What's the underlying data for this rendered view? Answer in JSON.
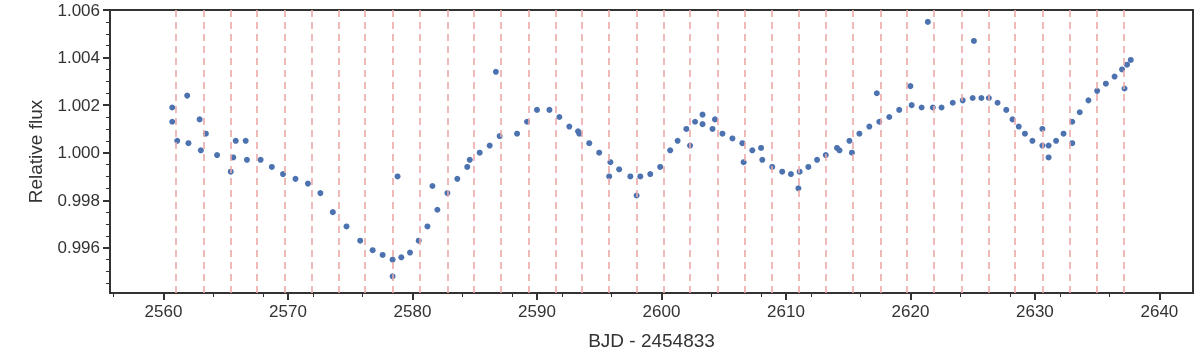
{
  "chart_data": {
    "type": "scatter",
    "xlabel": "BJD - 2454833",
    "ylabel": "Relative flux",
    "xlim": [
      2555.7,
      2642.7
    ],
    "ylim": [
      0.9941,
      1.006
    ],
    "xticks": [
      2560,
      2570,
      2580,
      2590,
      2600,
      2610,
      2620,
      2630,
      2640
    ],
    "yticks": [
      {
        "value": 0.996,
        "label": "0.996"
      },
      {
        "value": 0.998,
        "label": "0.998"
      },
      {
        "value": 1.0,
        "label": "1.000"
      },
      {
        "value": 1.002,
        "label": "1.002"
      },
      {
        "value": 1.004,
        "label": "1.004"
      },
      {
        "value": 1.006,
        "label": "1.006"
      }
    ],
    "grid": false,
    "marker": "circle",
    "series": [
      {
        "color": "#4c72b0",
        "x": [
          2560.7,
          2560.7,
          2561.1,
          2562.0,
          2563.0,
          2564.3,
          2565.6,
          2566.7,
          2567.8,
          2568.7,
          2569.6,
          2570.6,
          2571.6,
          2572.6,
          2573.6,
          2574.7,
          2575.8,
          2576.8,
          2577.6,
          2578.4,
          2579.1,
          2579.8,
          2580.5,
          2581.2,
          2582.0,
          2582.8,
          2583.6,
          2584.4,
          2584.6,
          2585.4,
          2586.2,
          2587.0,
          2588.4,
          2589.2,
          2590.0,
          2591.0,
          2591.8,
          2592.6,
          2593.4,
          2594.2,
          2595.0,
          2595.9,
          2596.6,
          2597.5,
          2598.3,
          2599.1,
          2599.9,
          2600.7,
          2601.3,
          2602.0,
          2602.7,
          2603.3,
          2604.1,
          2604.9,
          2605.7,
          2606.5,
          2607.3,
          2608.1,
          2608.9,
          2609.7,
          2610.4,
          2611.1,
          2611.8,
          2612.5,
          2613.2,
          2614.1,
          2614.3,
          2615.1,
          2615.9,
          2616.7,
          2617.5,
          2618.3,
          2619.1,
          2620.1,
          2620.9,
          2621.8,
          2622.5,
          2623.4,
          2624.2,
          2625.0,
          2625.7,
          2626.3,
          2627.0,
          2627.7,
          2628.2,
          2628.7,
          2629.2,
          2629.8,
          2630.6,
          2631.1,
          2631.7,
          2632.3,
          2633.0,
          2633.6,
          2634.3,
          2635.0,
          2635.7,
          2636.4,
          2637.0,
          2637.4,
          2637.7,
          2561.9,
          2562.9,
          2563.4,
          2565.8,
          2566.6,
          2565.4,
          2578.8,
          2581.6,
          2578.4,
          2586.7,
          2593.3,
          2598.0,
          2595.8,
          2603.3,
          2604.3,
          2602.3,
          2611.0,
          2606.6,
          2608.0,
          2625.1,
          2621.4,
          2617.3,
          2620.0,
          2630.6,
          2633.0,
          2637.2,
          2631.1,
          2615.3
        ],
        "values": [
          1.0019,
          1.0013,
          1.0005,
          1.0004,
          1.0001,
          0.9999,
          0.9998,
          0.9997,
          0.9997,
          0.9994,
          0.9991,
          0.9989,
          0.9987,
          0.9983,
          0.9975,
          0.9969,
          0.9963,
          0.9959,
          0.9957,
          0.9955,
          0.9956,
          0.9958,
          0.9963,
          0.9969,
          0.9976,
          0.9983,
          0.9989,
          0.9994,
          0.9997,
          1.0,
          1.0003,
          1.0007,
          1.0008,
          1.0013,
          1.0018,
          1.0018,
          1.0015,
          1.0011,
          1.0008,
          1.0004,
          1.0,
          0.9996,
          0.9993,
          0.999,
          0.999,
          0.9991,
          0.9994,
          1.0001,
          1.0005,
          1.001,
          1.0013,
          1.0012,
          1.001,
          1.0008,
          1.0006,
          1.0004,
          1.0001,
          0.9997,
          0.9994,
          0.9992,
          0.9991,
          0.9992,
          0.9994,
          0.9997,
          0.9999,
          1.0002,
          1.0001,
          1.0005,
          1.0008,
          1.0011,
          1.0013,
          1.0015,
          1.0018,
          1.002,
          1.0019,
          1.0019,
          1.0019,
          1.0021,
          1.0022,
          1.0023,
          1.0023,
          1.0023,
          1.0021,
          1.0018,
          1.0014,
          1.0011,
          1.0008,
          1.0005,
          1.0003,
          1.0003,
          1.0005,
          1.0008,
          1.0013,
          1.0017,
          1.0022,
          1.0026,
          1.0029,
          1.0032,
          1.0035,
          1.0037,
          1.0039,
          1.0024,
          1.0014,
          1.0008,
          1.0005,
          1.0005,
          0.9992,
          0.999,
          0.9986,
          0.9948,
          1.0034,
          1.0009,
          0.9982,
          0.999,
          1.0016,
          1.0014,
          1.0003,
          0.9985,
          0.9996,
          1.0002,
          1.0047,
          1.0055,
          1.0025,
          1.0028,
          1.001,
          1.0004,
          1.0027,
          0.9998,
          1.0
        ]
      }
    ],
    "ref_lines": [
      {
        "axis": "x",
        "value": 2561.0,
        "color": "#eaa9a9",
        "line_style": "dashed"
      },
      {
        "axis": "x",
        "value": 2563.2,
        "color": "#eaa9a9",
        "line_style": "dashed"
      },
      {
        "axis": "x",
        "value": 2565.4,
        "color": "#eaa9a9",
        "line_style": "dashed"
      },
      {
        "axis": "x",
        "value": 2567.5,
        "color": "#eaa9a9",
        "line_style": "dashed"
      },
      {
        "axis": "x",
        "value": 2569.7,
        "color": "#eaa9a9",
        "line_style": "dashed"
      },
      {
        "axis": "x",
        "value": 2571.9,
        "color": "#eaa9a9",
        "line_style": "dashed"
      },
      {
        "axis": "x",
        "value": 2574.1,
        "color": "#eaa9a9",
        "line_style": "dashed"
      },
      {
        "axis": "x",
        "value": 2576.2,
        "color": "#eaa9a9",
        "line_style": "dashed"
      },
      {
        "axis": "x",
        "value": 2578.4,
        "color": "#eaa9a9",
        "line_style": "dashed"
      },
      {
        "axis": "x",
        "value": 2580.6,
        "color": "#eaa9a9",
        "line_style": "dashed"
      },
      {
        "axis": "x",
        "value": 2582.8,
        "color": "#eaa9a9",
        "line_style": "dashed"
      },
      {
        "axis": "x",
        "value": 2584.9,
        "color": "#eaa9a9",
        "line_style": "dashed"
      },
      {
        "axis": "x",
        "value": 2587.1,
        "color": "#eaa9a9",
        "line_style": "dashed"
      },
      {
        "axis": "x",
        "value": 2589.3,
        "color": "#eaa9a9",
        "line_style": "dashed"
      },
      {
        "axis": "x",
        "value": 2591.5,
        "color": "#eaa9a9",
        "line_style": "dashed"
      },
      {
        "axis": "x",
        "value": 2593.6,
        "color": "#eaa9a9",
        "line_style": "dashed"
      },
      {
        "axis": "x",
        "value": 2595.8,
        "color": "#eaa9a9",
        "line_style": "dashed"
      },
      {
        "axis": "x",
        "value": 2598.0,
        "color": "#eaa9a9",
        "line_style": "dashed"
      },
      {
        "axis": "x",
        "value": 2600.2,
        "color": "#eaa9a9",
        "line_style": "dashed"
      },
      {
        "axis": "x",
        "value": 2602.3,
        "color": "#eaa9a9",
        "line_style": "dashed"
      },
      {
        "axis": "x",
        "value": 2604.5,
        "color": "#eaa9a9",
        "line_style": "dashed"
      },
      {
        "axis": "x",
        "value": 2606.7,
        "color": "#eaa9a9",
        "line_style": "dashed"
      },
      {
        "axis": "x",
        "value": 2608.9,
        "color": "#eaa9a9",
        "line_style": "dashed"
      },
      {
        "axis": "x",
        "value": 2611.0,
        "color": "#eaa9a9",
        "line_style": "dashed"
      },
      {
        "axis": "x",
        "value": 2613.2,
        "color": "#eaa9a9",
        "line_style": "dashed"
      },
      {
        "axis": "x",
        "value": 2615.4,
        "color": "#eaa9a9",
        "line_style": "dashed"
      },
      {
        "axis": "x",
        "value": 2617.6,
        "color": "#eaa9a9",
        "line_style": "dashed"
      },
      {
        "axis": "x",
        "value": 2619.7,
        "color": "#eaa9a9",
        "line_style": "dashed"
      },
      {
        "axis": "x",
        "value": 2621.9,
        "color": "#eaa9a9",
        "line_style": "dashed"
      },
      {
        "axis": "x",
        "value": 2624.1,
        "color": "#eaa9a9",
        "line_style": "dashed"
      },
      {
        "axis": "x",
        "value": 2626.3,
        "color": "#eaa9a9",
        "line_style": "dashed"
      },
      {
        "axis": "x",
        "value": 2628.4,
        "color": "#eaa9a9",
        "line_style": "dashed"
      },
      {
        "axis": "x",
        "value": 2630.6,
        "color": "#eaa9a9",
        "line_style": "dashed"
      },
      {
        "axis": "x",
        "value": 2632.8,
        "color": "#eaa9a9",
        "line_style": "dashed"
      },
      {
        "axis": "x",
        "value": 2635.0,
        "color": "#eaa9a9",
        "line_style": "dashed"
      },
      {
        "axis": "x",
        "value": 2637.1,
        "color": "#eaa9a9",
        "line_style": "dashed"
      }
    ]
  }
}
